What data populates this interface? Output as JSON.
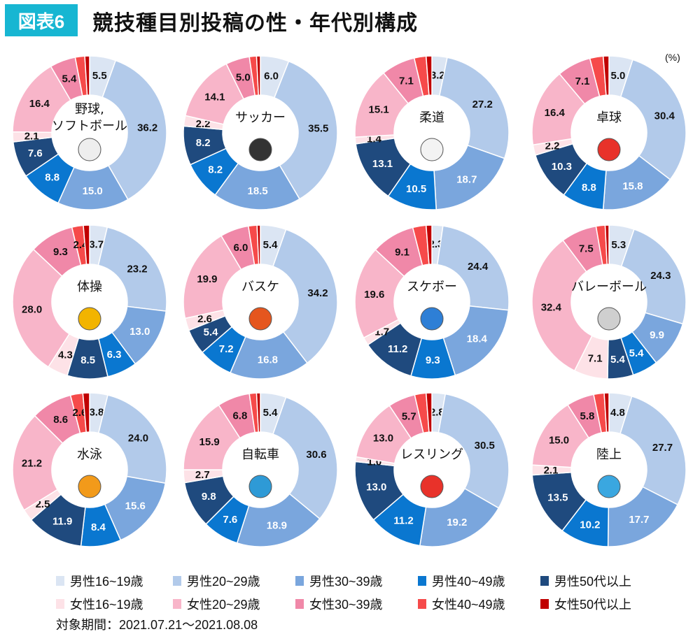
{
  "header": {
    "badge": "図表6",
    "title": "競技種目別投稿の性・年代別構成",
    "unit": "(%)"
  },
  "footer": "対象期間：2021.07.21～2021.08.08",
  "chart_data": {
    "type": "pie",
    "subtype": "donut",
    "categories": [
      "男性16~19歳",
      "男性20~29歳",
      "男性30~39歳",
      "男性40~49歳",
      "男性50代以上",
      "女性16~19歳",
      "女性20~29歳",
      "女性30~39歳",
      "女性40~49歳",
      "女性50代以上"
    ],
    "colors": [
      "#dbe5f3",
      "#b2caea",
      "#7aa6dd",
      "#0a77d0",
      "#1f4a7e",
      "#fde2e7",
      "#f8b5c9",
      "#f088a8",
      "#f64a4a",
      "#c00000"
    ],
    "charts": [
      {
        "title": "野球,\nソフトボール",
        "icon": "baseball-icon",
        "values": [
          5.5,
          36.2,
          15.0,
          8.8,
          7.6,
          2.1,
          16.4,
          5.4,
          2.0,
          1.0
        ],
        "labeled": [
          1,
          1,
          1,
          1,
          1,
          1,
          1,
          1,
          0,
          0
        ]
      },
      {
        "title": "サッカー",
        "icon": "soccer-ball-icon",
        "values": [
          6.0,
          35.5,
          18.5,
          8.2,
          8.2,
          2.2,
          14.1,
          5.0,
          1.5,
          0.8
        ],
        "labeled": [
          1,
          1,
          1,
          1,
          1,
          1,
          1,
          1,
          0,
          0
        ]
      },
      {
        "title": "柔道",
        "icon": "judo-gi-icon",
        "values": [
          3.2,
          27.2,
          18.7,
          10.5,
          13.1,
          1.4,
          15.1,
          7.1,
          2.5,
          1.2
        ],
        "labeled": [
          1,
          1,
          1,
          1,
          1,
          1,
          1,
          1,
          0,
          0
        ]
      },
      {
        "title": "卓球",
        "icon": "ping-pong-icon",
        "values": [
          5.0,
          30.4,
          15.8,
          8.8,
          10.3,
          2.2,
          16.4,
          7.1,
          2.8,
          1.2
        ],
        "labeled": [
          1,
          1,
          1,
          1,
          1,
          1,
          1,
          1,
          0,
          0
        ]
      },
      {
        "title": "体操",
        "icon": "gymnast-icon",
        "values": [
          3.7,
          23.2,
          13.0,
          6.3,
          8.5,
          4.3,
          28.0,
          9.3,
          2.4,
          1.3
        ],
        "labeled": [
          1,
          1,
          1,
          1,
          1,
          1,
          1,
          1,
          1,
          0
        ]
      },
      {
        "title": "バスケ",
        "icon": "basketball-icon",
        "values": [
          5.4,
          34.2,
          16.8,
          7.2,
          5.4,
          2.6,
          19.9,
          6.0,
          1.8,
          0.7
        ],
        "labeled": [
          1,
          1,
          1,
          1,
          1,
          1,
          1,
          1,
          0,
          0
        ]
      },
      {
        "title": "スケボー",
        "icon": "skateboard-icon",
        "values": [
          2.3,
          24.4,
          18.4,
          9.3,
          11.2,
          1.7,
          19.6,
          9.1,
          2.8,
          1.2
        ],
        "labeled": [
          1,
          1,
          1,
          1,
          1,
          1,
          1,
          1,
          0,
          0
        ]
      },
      {
        "title": "バレーボール",
        "icon": "volleyball-icon",
        "values": [
          5.3,
          24.3,
          9.9,
          5.4,
          5.4,
          7.1,
          32.4,
          7.5,
          1.9,
          0.8
        ],
        "labeled": [
          1,
          1,
          1,
          1,
          1,
          1,
          1,
          1,
          0,
          0
        ]
      },
      {
        "title": "水泳",
        "icon": "swimmer-icon",
        "values": [
          3.8,
          24.0,
          15.6,
          8.4,
          11.9,
          2.5,
          21.2,
          8.6,
          2.6,
          1.4
        ],
        "labeled": [
          1,
          1,
          1,
          1,
          1,
          1,
          1,
          1,
          1,
          0
        ]
      },
      {
        "title": "自転車",
        "icon": "cyclist-icon",
        "values": [
          5.4,
          30.6,
          18.9,
          7.6,
          9.8,
          2.7,
          15.9,
          6.8,
          1.5,
          0.8
        ],
        "labeled": [
          1,
          1,
          1,
          1,
          1,
          1,
          1,
          1,
          0,
          0
        ]
      },
      {
        "title": "レスリング",
        "icon": "wrestlers-icon",
        "values": [
          2.8,
          30.5,
          19.2,
          11.2,
          13.0,
          1.0,
          13.0,
          5.7,
          2.4,
          1.2
        ],
        "labeled": [
          1,
          1,
          1,
          1,
          1,
          1,
          1,
          1,
          0,
          0
        ]
      },
      {
        "title": "陸上",
        "icon": "runner-icon",
        "values": [
          4.8,
          27.7,
          17.7,
          10.2,
          13.5,
          2.1,
          15.0,
          5.8,
          2.2,
          1.0
        ],
        "labeled": [
          1,
          1,
          1,
          1,
          1,
          1,
          1,
          1,
          0,
          0
        ]
      }
    ]
  }
}
